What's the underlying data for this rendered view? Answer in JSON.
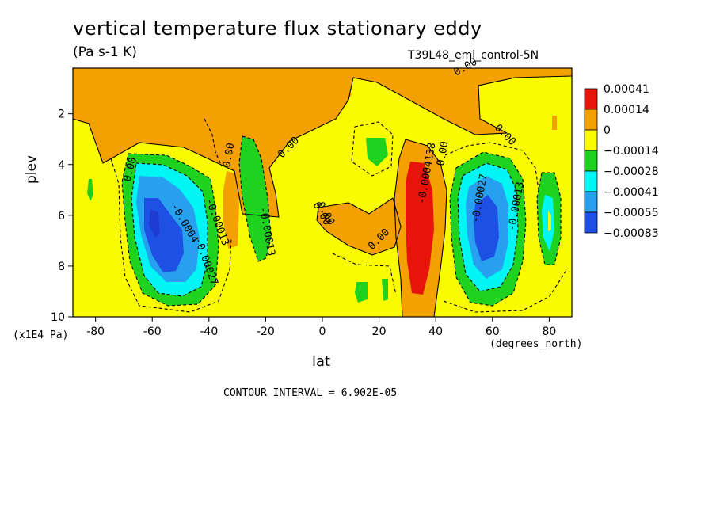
{
  "title": "vertical temperature flux stationary eddy",
  "units": "(Pa s-1 K)",
  "run_label": "T39L48_eml_control-5N",
  "footer": "CONTOUR INTERVAL = 6.902E-05",
  "colors": {
    "red": "#e8140c",
    "orange": "#f4a000",
    "yellow": "#fbfb00",
    "green": "#1ed21e",
    "cyan": "#00f5f5",
    "lightblue": "#28a0f0",
    "blue": "#1e50e6"
  },
  "chart_data": {
    "type": "contour",
    "title": "vertical temperature flux stationary eddy",
    "xlabel": "lat",
    "xunits": "(degrees_north)",
    "ylabel": "plev",
    "yunits": "(x1E4 Pa)",
    "xlim": [
      -88,
      88
    ],
    "ylim": [
      10,
      0.2
    ],
    "x_ticks": [
      -80,
      -60,
      -40,
      -20,
      0,
      20,
      40,
      60,
      80
    ],
    "x_tick_labels": [
      "-80",
      "-60",
      "-40",
      "-20",
      "0",
      "20",
      "40",
      "60",
      "80"
    ],
    "y_ticks": [
      2,
      4,
      6,
      8,
      10
    ],
    "y_tick_labels": [
      "2",
      "4",
      "6",
      "8",
      "10"
    ],
    "contour_interval": 6.902e-05,
    "legend": {
      "entries": [
        {
          "label": "0.00041",
          "color": "#e8140c"
        },
        {
          "label": "0.00014",
          "color": "#f4a000"
        },
        {
          "label": "0",
          "color": "#fbfb00"
        },
        {
          "label": "−0.00014",
          "color": "#1ed21e"
        },
        {
          "label": "−0.00028",
          "color": "#00f5f5"
        },
        {
          "label": "−0.00041",
          "color": "#28a0f0"
        },
        {
          "label": "−0.00055",
          "color": "#1e50e6"
        },
        {
          "label": "−0.00083",
          "color": "#1e50e6"
        }
      ]
    },
    "features": [
      {
        "name": "southern-negative-core",
        "lat": -56,
        "plev": 6.5,
        "value": -0.00083
      },
      {
        "name": "northern-negative-core",
        "lat": 60,
        "plev": 6.5,
        "value": -0.00055
      },
      {
        "name": "positive-maximum",
        "lat": 35,
        "plev": 6.5,
        "value": 0.00041
      },
      {
        "name": "negative-band-east",
        "lat": 80,
        "plev": 6.0,
        "value": -0.00028
      },
      {
        "name": "negative-band-west",
        "lat": -27,
        "plev": 5.5,
        "value": -0.00014
      }
    ],
    "contour_labels": [
      "0.00",
      "0.00",
      "0.00",
      "0.00",
      "0.00",
      "0.00",
      "0.00",
      "0.00",
      "0.00",
      "-0.00013",
      "-0.00027",
      "-0.0004",
      "-0.00013",
      "-0.0004138",
      "-0.00027",
      "-0.00013"
    ]
  }
}
